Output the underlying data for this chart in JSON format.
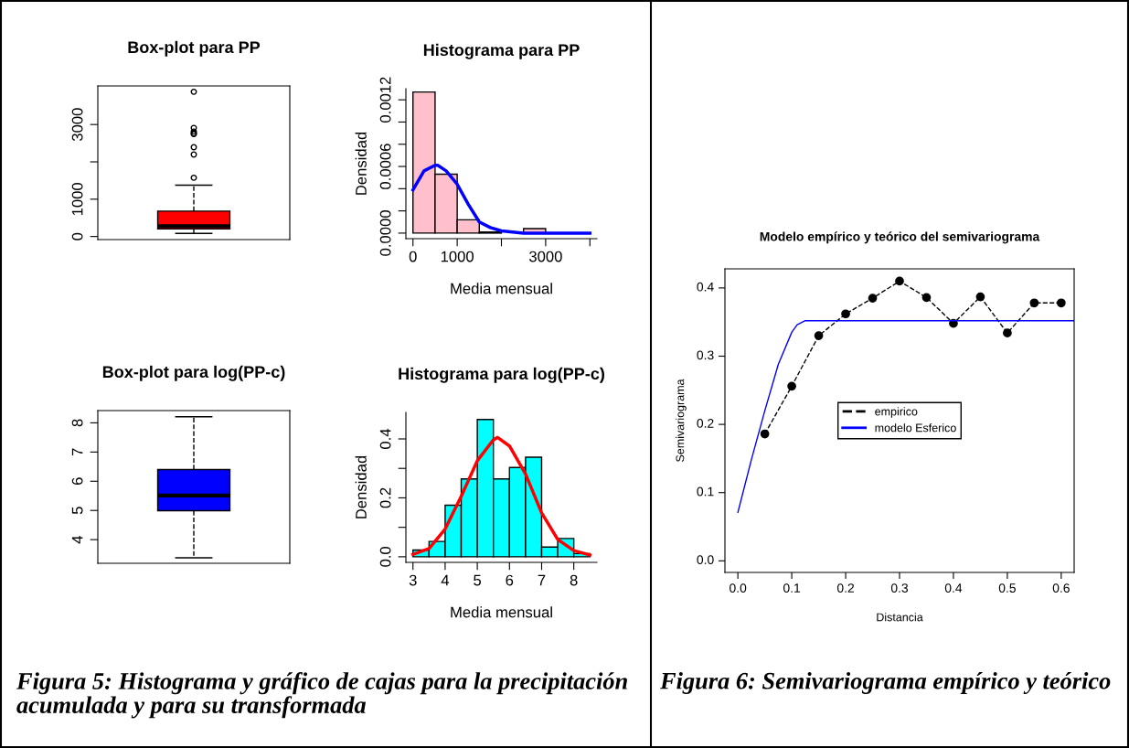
{
  "chart_data": [
    {
      "type": "box",
      "title": "Box-plot para PP",
      "categories": [
        null
      ],
      "color": "#ff0000",
      "boxes": [
        {
          "low": 82,
          "q1": 205,
          "median": 280,
          "q3": 680,
          "high": 1377,
          "outliers": [
            1574,
            2197,
            2393,
            2746,
            2760,
            2811,
            2910,
            3877
          ]
        }
      ],
      "ylim": [
        -82,
        4033
      ],
      "yticks": [
        0,
        1000,
        {
          "value": 2000,
          "label": null
        },
        3000
      ],
      "tick_labels": "y"
    },
    {
      "type": "histogram",
      "title": "Histograma para PP",
      "xlabel": "Media mensual",
      "ylabel": "Densidad",
      "bins": [
        0,
        500,
        1000,
        1500,
        2000,
        2500,
        3000,
        3500,
        4000
      ],
      "values": [
        0.00127,
        0.00053,
        0.00012,
        1e-05,
        null,
        4e-05,
        null,
        null
      ],
      "color": "#ffc0cb",
      "series": [
        {
          "type": "line",
          "color": "#0000ff",
          "x": [
            0,
            250,
            500,
            560,
            750,
            1000,
            1250,
            1500,
            1750,
            2000,
            2500,
            3000,
            3500,
            4000
          ],
          "values": [
            0.00039,
            0.00056,
            0.00061,
            0.00061,
            0.00056,
            0.00044,
            0.00026,
            0.0001,
            5e-05,
            2e-05,
            0,
            0,
            0,
            0
          ]
        }
      ],
      "xlim": [
        -160,
        4160
      ],
      "ylim": [
        -5e-05,
        0.0013
      ],
      "xticks": [
        0,
        1000,
        {
          "value": 2000,
          "label": null
        },
        3000,
        {
          "value": 4000,
          "label": null
        }
      ],
      "yticks": [
        "0.0000",
        {
          "value": 0.0002,
          "label": null
        },
        {
          "value": 0.0004,
          "label": null
        },
        {
          "value": 0.0006,
          "label": "0.0006"
        },
        {
          "value": 0.0008,
          "label": null
        },
        {
          "value": 0.001,
          "label": null
        },
        {
          "value": 0.0012,
          "label": "0.0012"
        }
      ]
    },
    {
      "type": "box",
      "title": "Box-plot para log(PP-c)",
      "categories": [
        null
      ],
      "color": "#0000ff",
      "boxes": [
        {
          "low": 3.38,
          "q1": 4.99,
          "median": 5.51,
          "q3": 6.4,
          "high": 8.21
        }
      ],
      "ylim": [
        3.19,
        8.42
      ],
      "yticks": [
        4,
        5,
        6,
        7,
        8
      ],
      "tick_labels": "y"
    },
    {
      "type": "histogram",
      "title": "Histograma para log(PP-c)",
      "xlabel": "Media mensual",
      "ylabel": "Densidad",
      "bins": [
        3,
        3.5,
        4,
        4.5,
        5,
        5.5,
        6,
        6.5,
        7,
        7.5,
        8,
        8.5
      ],
      "values": [
        0.023,
        0.052,
        0.175,
        0.264,
        0.466,
        0.264,
        0.303,
        0.338,
        0.033,
        0.062,
        0.011
      ],
      "color": "#00ffff",
      "series": [
        {
          "type": "line",
          "color": "#ff0000",
          "x": [
            3,
            3.5,
            4,
            4.5,
            5,
            5.5,
            5.63,
            6,
            6.5,
            7,
            7.5,
            8,
            8.5
          ],
          "values": [
            0.008,
            0.028,
            0.094,
            0.205,
            0.326,
            0.397,
            0.405,
            0.376,
            0.281,
            0.149,
            0.059,
            0.021,
            0.006
          ]
        }
      ],
      "xlim": [
        2.78,
        8.72
      ],
      "ylim": [
        -0.019,
        0.49
      ],
      "xticks": [
        3,
        4,
        5,
        6,
        7,
        8
      ],
      "yticks": [
        {
          "value": 0,
          "label": "0.0"
        },
        {
          "value": 0.1,
          "label": null
        },
        {
          "value": 0.2,
          "label": "0.2"
        },
        {
          "value": 0.3,
          "label": null
        },
        {
          "value": 0.4,
          "label": "0.4"
        }
      ],
      "annotations": [
        "Figura 5: Histograma y gráfico de cajas para la precipitación acumulada y para su transformada"
      ]
    },
    {
      "type": "line",
      "title": "Modelo empírico y teórico del semivariograma",
      "xlabel": "Distancia",
      "ylabel": "Semivariograma",
      "legend": "center",
      "series": [
        {
          "name": "empirico",
          "color": "#000000",
          "marker": "circle",
          "line_style": "dashed",
          "x": [
            0.05,
            0.1,
            0.15,
            0.2,
            0.25,
            0.3,
            0.35,
            0.4,
            0.45,
            0.5,
            0.55,
            0.6
          ],
          "values": [
            0.186,
            0.256,
            0.33,
            0.362,
            0.385,
            0.41,
            0.386,
            0.348,
            0.387,
            0.334,
            0.378,
            0.378
          ]
        },
        {
          "name": "modelo Esferico",
          "color": "#0000ff",
          "line_style": "solid",
          "x": [
            0,
            0.025,
            0.05,
            0.075,
            0.1,
            0.11,
            0.125,
            0.3,
            0.624
          ],
          "values": [
            0.071,
            0.148,
            0.22,
            0.288,
            0.335,
            0.346,
            0.352,
            0.352,
            0.352
          ]
        }
      ],
      "xlim": [
        -0.024,
        0.624
      ],
      "ylim": [
        -0.017,
        0.428
      ],
      "xticks": [
        "0.0",
        0.1,
        0.2,
        0.3,
        0.4,
        0.5,
        0.6
      ],
      "yticks": [
        "0.0",
        0.1,
        0.2,
        0.3,
        0.4
      ],
      "annotations": [
        "Figura 6: Semivariograma empírico y teórico"
      ]
    }
  ]
}
